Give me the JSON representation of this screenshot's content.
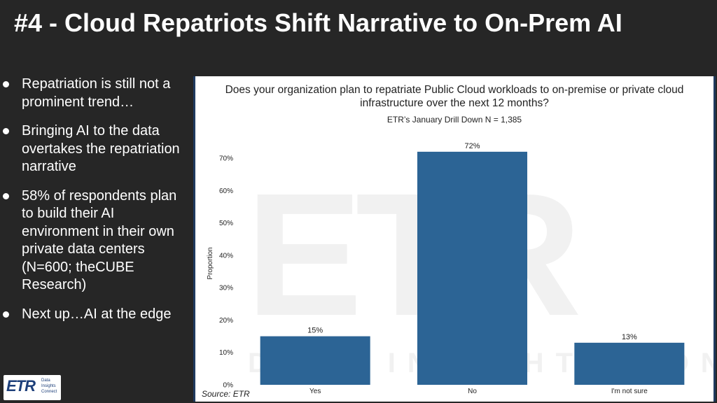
{
  "slide": {
    "title": "#4 - Cloud Repatriots Shift Narrative to On-Prem AI",
    "bullets": [
      "Repatriation is still not a prominent trend…",
      "Bringing AI to the data overtakes the repatriation narrative",
      "58% of respondents plan to build their AI environment in their own private data centers (N=600; theCUBE Research)",
      "Next up…AI at the edge"
    ],
    "logo": {
      "mark": "ETR",
      "tagline": "Data Insights Connect"
    }
  },
  "chart_data": {
    "type": "bar",
    "title": "Does your organization plan to repatriate Public Cloud workloads to on-premise or private cloud infrastructure over the next 12 months?",
    "subtitle": "ETR’s January Drill Down N = 1,385",
    "ylabel": "Proportion",
    "xlabel": "",
    "categories": [
      "Yes",
      "No",
      "I'm not sure"
    ],
    "values": [
      15,
      72,
      13
    ],
    "data_labels": [
      "15%",
      "72%",
      "13%"
    ],
    "ylim": [
      0,
      75
    ],
    "yticks": [
      0,
      10,
      20,
      30,
      40,
      50,
      60,
      70
    ],
    "ytick_labels": [
      "0%",
      "10%",
      "20%",
      "30%",
      "40%",
      "50%",
      "60%",
      "70%"
    ],
    "bar_color": "#2c6495",
    "grid": false,
    "source": "Source: ETR",
    "watermark": "ETR",
    "watermark_text": "DATA INSIGHTS CONNECT"
  }
}
